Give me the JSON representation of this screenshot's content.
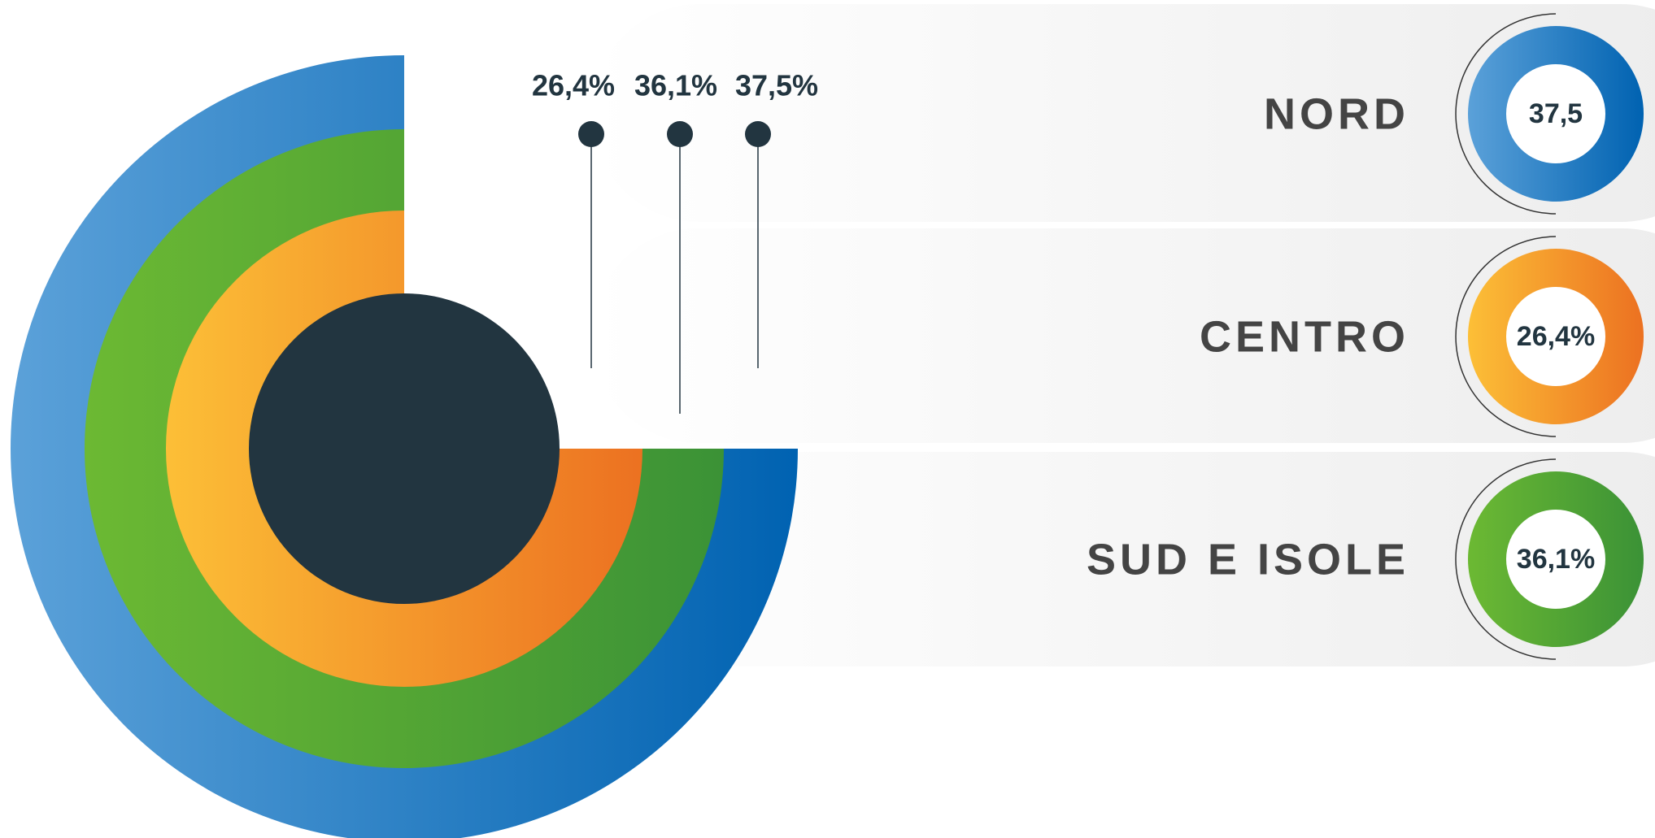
{
  "top_labels": [
    "26,4%",
    "36,1%",
    "37,5%"
  ],
  "regions": [
    {
      "name": "NORD",
      "badge": "37,5"
    },
    {
      "name": "CENTRO",
      "badge": "26,4%"
    },
    {
      "name": "SUD E ISOLE",
      "badge": "36,1%"
    }
  ]
}
